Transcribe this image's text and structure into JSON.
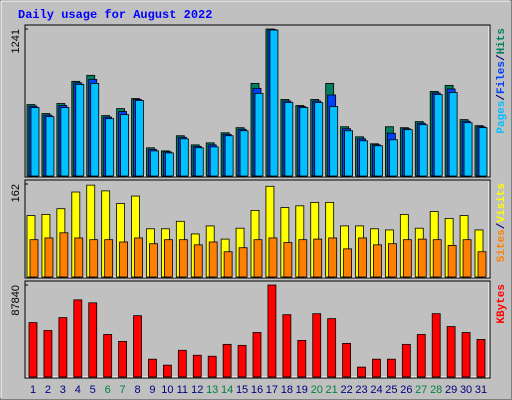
{
  "chart_data": [
    {
      "type": "bar",
      "title": "Daily usage for August 2022",
      "legend_separator": "/",
      "ylim": [
        0,
        1241
      ],
      "yticks": [
        1241
      ],
      "series": [
        {
          "name": "Hits",
          "color": "#008060",
          "values": [
            603,
            527,
            612,
            799,
            850,
            510,
            569,
            654,
            238,
            212,
            340,
            263,
            280,
            365,
            408,
            782,
            1241,
            646,
            595,
            646,
            782,
            416,
            331,
            272,
            416,
            408,
            459,
            714,
            765,
            476,
            425
          ]
        },
        {
          "name": "Files",
          "color": "#0040ff",
          "values": [
            590,
            514,
            595,
            786,
            816,
            497,
            544,
            646,
            225,
            204,
            327,
            250,
            263,
            352,
            395,
            740,
            1237,
            633,
            586,
            633,
            684,
            399,
            314,
            263,
            361,
            399,
            446,
            701,
            735,
            463,
            416
          ]
        },
        {
          "name": "Pages",
          "color": "#00c0ff",
          "values": [
            578,
            501,
            578,
            773,
            782,
            484,
            518,
            637,
            212,
            195,
            314,
            238,
            246,
            340,
            382,
            697,
            1232,
            620,
            578,
            620,
            586,
            382,
            297,
            255,
            306,
            391,
            433,
            688,
            705,
            450,
            408
          ]
        }
      ]
    },
    {
      "type": "bar",
      "ylim": [
        0,
        162
      ],
      "yticks": [
        162
      ],
      "series": [
        {
          "name": "Visits",
          "color": "#ffff00",
          "values": [
            107,
            109,
            119,
            148,
            160,
            150,
            128,
            141,
            84,
            84,
            97,
            75,
            89,
            66,
            85,
            116,
            158,
            121,
            124,
            130,
            130,
            89,
            89,
            84,
            82,
            109,
            85,
            114,
            102,
            107,
            82
          ]
        },
        {
          "name": "Sites",
          "color": "#ff8000",
          "values": [
            65,
            68,
            77,
            68,
            65,
            65,
            61,
            68,
            58,
            65,
            65,
            56,
            61,
            44,
            51,
            65,
            68,
            60,
            65,
            66,
            68,
            49,
            68,
            56,
            58,
            65,
            66,
            65,
            55,
            65,
            44
          ]
        }
      ]
    },
    {
      "type": "bar",
      "ylim": [
        0,
        87840
      ],
      "yticks": [
        87840
      ],
      "categories": [
        "1",
        "2",
        "3",
        "4",
        "5",
        "6",
        "7",
        "8",
        "9",
        "10",
        "11",
        "12",
        "13",
        "14",
        "15",
        "16",
        "17",
        "18",
        "19",
        "20",
        "21",
        "22",
        "23",
        "24",
        "25",
        "26",
        "27",
        "28",
        "29",
        "30",
        "31"
      ],
      "category_colors": [
        "#000080",
        "#000080",
        "#000080",
        "#000080",
        "#000080",
        "#008040",
        "#008040",
        "#000080",
        "#000080",
        "#000080",
        "#000080",
        "#000080",
        "#008040",
        "#008040",
        "#000080",
        "#000080",
        "#000080",
        "#000080",
        "#000080",
        "#008040",
        "#008040",
        "#000080",
        "#000080",
        "#000080",
        "#000080",
        "#000080",
        "#008040",
        "#008040",
        "#000080",
        "#000080",
        "#000080"
      ],
      "series": [
        {
          "name": "KBytes",
          "color": "#ff0000",
          "values": [
            51950,
            44390,
            56670,
            73670,
            70840,
            40610,
            34000,
            58560,
            17000,
            11330,
            25500,
            20780,
            19830,
            31170,
            30220,
            42500,
            87840,
            59500,
            34950,
            60450,
            55720,
            32110,
            9440,
            17000,
            17000,
            31170,
            40610,
            60450,
            48170,
            42500,
            35890
          ]
        }
      ]
    }
  ]
}
